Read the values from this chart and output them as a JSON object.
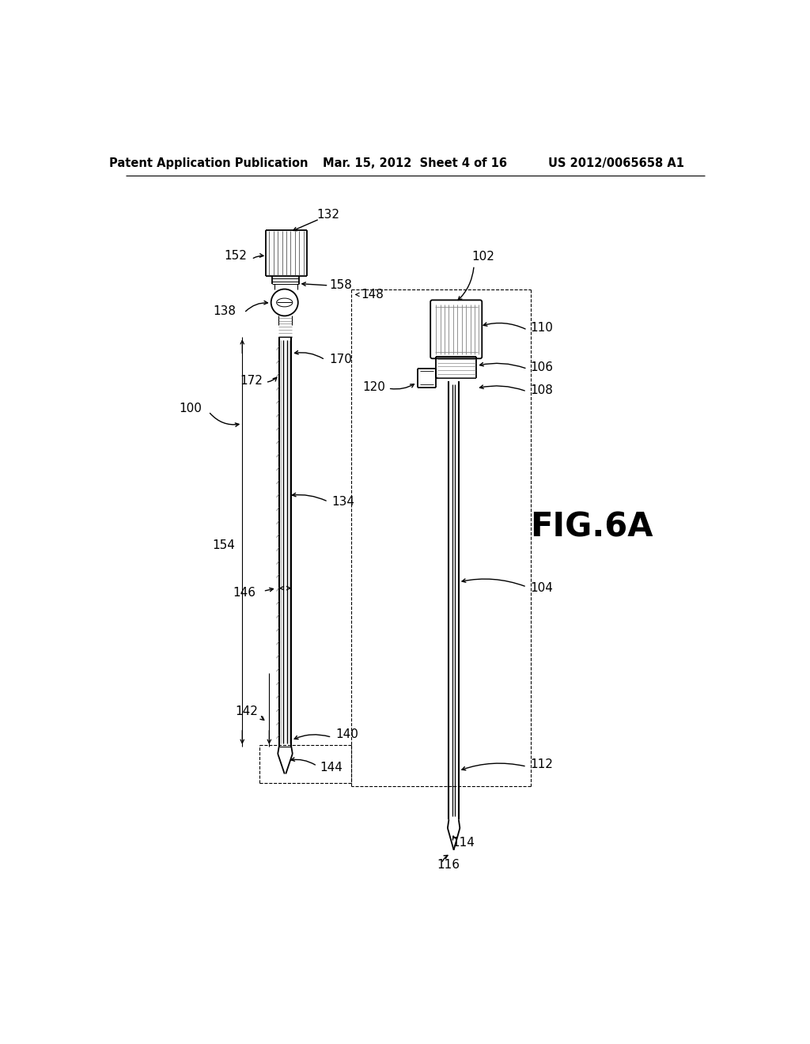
{
  "bg_color": "#ffffff",
  "header_left": "Patent Application Publication",
  "header_center": "Mar. 15, 2012  Sheet 4 of 16",
  "header_right": "US 2012/0065658 A1",
  "fig_label": "FIG.6A",
  "title_fontsize": 10.5,
  "fig_label_fontsize": 30,
  "annotation_fontsize": 11,
  "line_color": "#000000",
  "lw": 1.3
}
